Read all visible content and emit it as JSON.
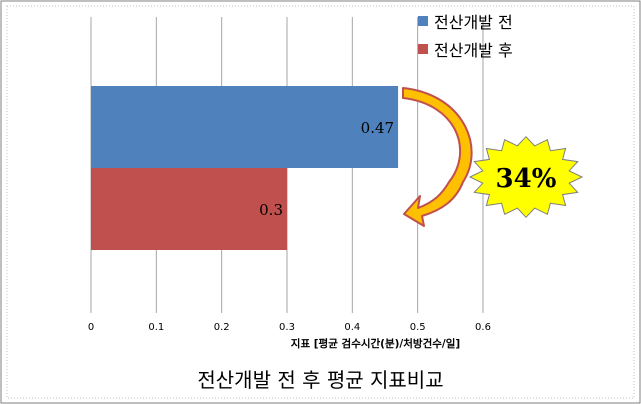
{
  "chart_data": {
    "type": "bar",
    "orientation": "horizontal",
    "title": "전산개발 전 후 평균 지표비교",
    "xlabel": "지표 [평균 검수시간(분)/처방건수/일]",
    "ylabel": "",
    "xlim": [
      0,
      0.6
    ],
    "xticks": [
      "0",
      "0.1",
      "0.2",
      "0.3",
      "0.4",
      "0.5",
      "0.6"
    ],
    "grid": true,
    "legend": "top-right",
    "series": [
      {
        "name": "전산개발 전",
        "value": 0.47,
        "label": "0.47",
        "color": "#4f81bd"
      },
      {
        "name": "전산개발 후",
        "value": 0.3,
        "label": "0.3",
        "color": "#c0504d"
      }
    ],
    "annotation": {
      "text": "34%",
      "badge_color": "#ffff00",
      "arrow_color": "#ffc000",
      "arrow_outline": "#c0504d"
    }
  }
}
